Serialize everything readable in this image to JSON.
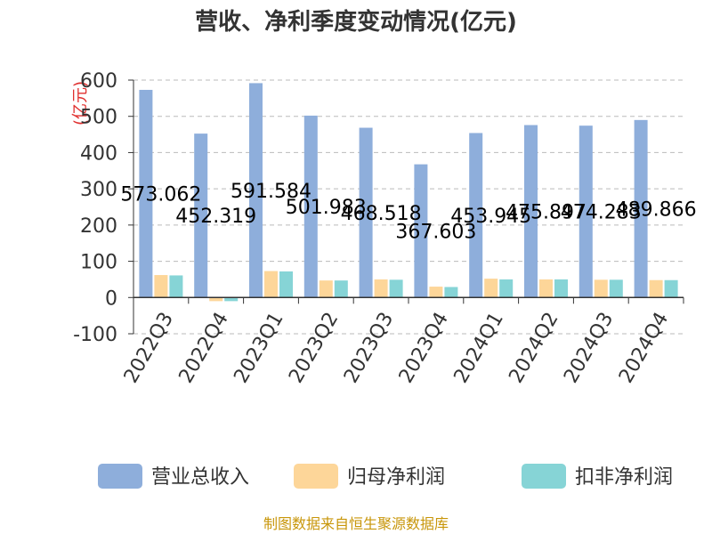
{
  "chart_data": {
    "type": "bar",
    "title": "营收、净利季度变动情况(亿元)",
    "ylabel": "(亿元)",
    "xlabel": "",
    "ylim": [
      -100,
      600
    ],
    "yticks": [
      "-100",
      "0",
      "100",
      "200",
      "300",
      "400",
      "500",
      "600"
    ],
    "grid": true,
    "legend_position": "bottom",
    "categories": [
      "2022Q3",
      "2022Q4",
      "2023Q1",
      "2023Q2",
      "2023Q3",
      "2023Q4",
      "2024Q1",
      "2024Q2",
      "2024Q3",
      "2024Q4"
    ],
    "series": [
      {
        "name": "营业总收入",
        "color": "#8eaedb",
        "values": [
          573.062,
          452.319,
          591.584,
          501.983,
          468.518,
          367.603,
          453.945,
          475.897,
          474.283,
          489.866
        ],
        "labels": [
          "573.062",
          "452.319",
          "591.584",
          "501.983",
          "468.518",
          "367.603",
          "453.945",
          "475.897",
          "474.283",
          "489.866"
        ]
      },
      {
        "name": "归母净利润",
        "color": "#fdd699",
        "values": [
          62,
          -10,
          73,
          47,
          50,
          30,
          52,
          50,
          49,
          48
        ]
      },
      {
        "name": "扣非净利润",
        "color": "#86d4d6",
        "values": [
          61,
          -10,
          72,
          47,
          49,
          29,
          50,
          50,
          49,
          48
        ]
      }
    ],
    "source": "制图数据来自恒生聚源数据库"
  }
}
